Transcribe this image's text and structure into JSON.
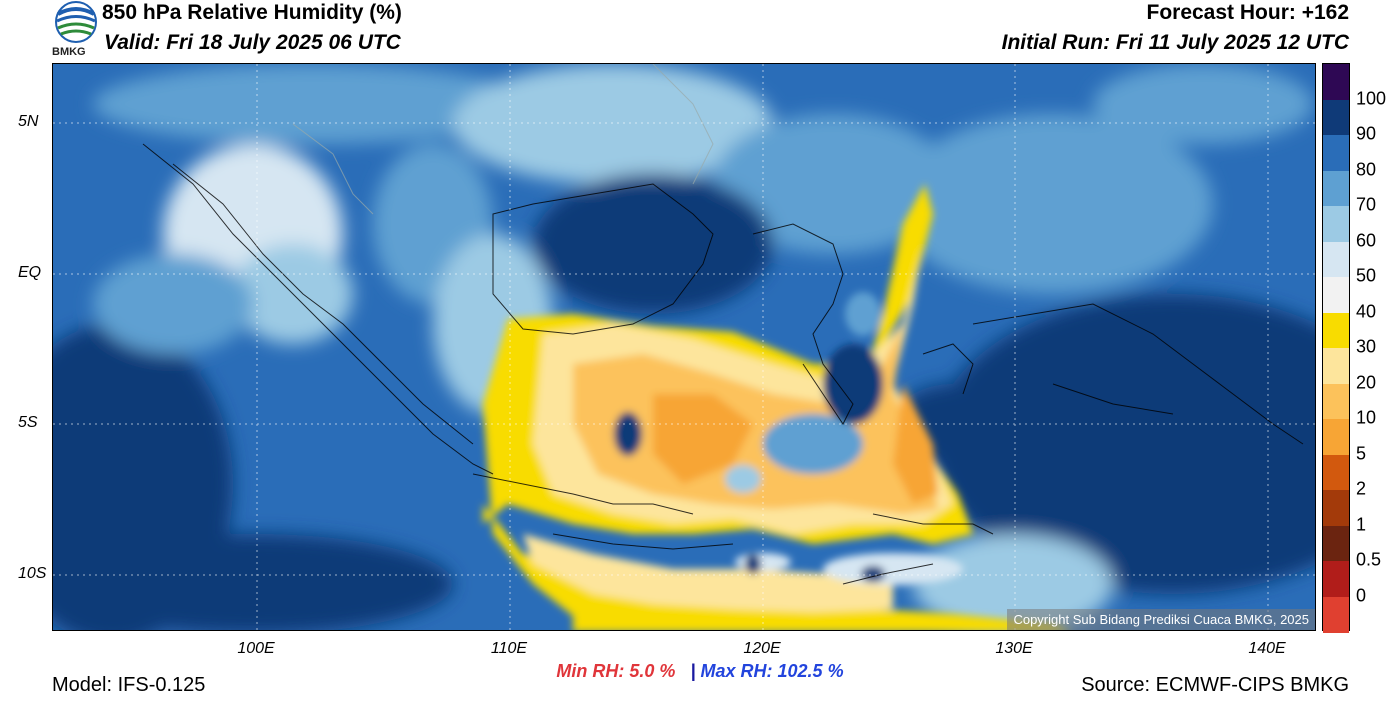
{
  "header": {
    "title": "850 hPa Relative Humidity (%)",
    "valid": "Valid: Fri 18 July 2025 06 UTC",
    "forecast_hour": "Forecast Hour: +162",
    "initial_run": "Initial Run: Fri 11 July 2025 12 UTC",
    "logo_text": "BMKG"
  },
  "map": {
    "lat_labels": [
      "5N",
      "EQ",
      "5S",
      "10S"
    ],
    "lon_labels": [
      "100E",
      "110E",
      "120E",
      "130E",
      "140E"
    ],
    "copyright": "Copyright Sub Bidang Prediksi Cuaca BMKG, 2025",
    "colors": {
      "dry_yellow": "#f8dc00",
      "dry_light": "#fde59c",
      "dry_tan": "#fcc25b",
      "dry_orange": "#f7a535",
      "white": "#f2f2f2",
      "pale_blue": "#d6e6f2",
      "light_blue": "#9ccae4",
      "mid_blue": "#5ea0d2",
      "blue": "#2a6db8",
      "navy": "#0f3a78"
    }
  },
  "colorbar": {
    "labels": [
      "100",
      "90",
      "80",
      "70",
      "60",
      "50",
      "40",
      "30",
      "20",
      "10",
      "5",
      "2",
      "1",
      "0.5",
      "0"
    ],
    "colors": [
      "#2e0854",
      "#0f3a78",
      "#2a6db8",
      "#5ea0d2",
      "#9ccae4",
      "#d6e6f2",
      "#f2f2f2",
      "#f8dc00",
      "#fde59c",
      "#fcc25b",
      "#f7a535",
      "#d2590e",
      "#a33a0a",
      "#6b2410",
      "#b11d1a",
      "#e04030"
    ]
  },
  "stats": {
    "min": "Min RH:   5.0 %",
    "separator": "|",
    "max": "Max RH: 102.5 %"
  },
  "footer": {
    "model": "Model: IFS-0.125",
    "source": "Source: ECMWF-CIPS BMKG"
  }
}
